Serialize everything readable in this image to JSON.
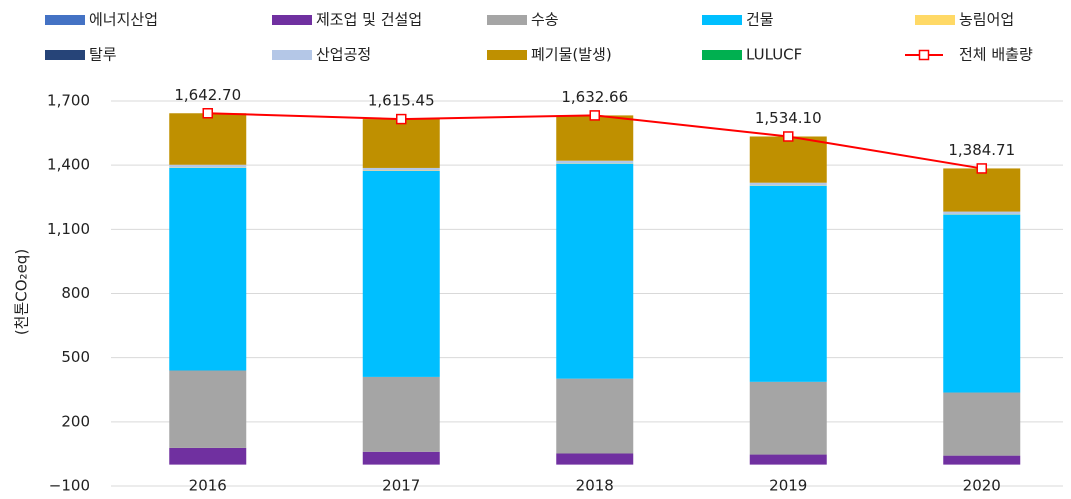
{
  "chart_data": {
    "type": "stacked_bar_line",
    "categories": [
      "2016",
      "2017",
      "2018",
      "2019",
      "2020"
    ],
    "y_label": "(천톤CO₂eq)",
    "ylim": [
      -100,
      1700
    ],
    "yticks": [
      {
        "value": -100,
        "label": "−100"
      },
      200,
      500,
      800,
      {
        "value": 1100,
        "label": "1,100"
      },
      {
        "value": 1400,
        "label": "1,400"
      },
      {
        "value": 1700,
        "label": "1,700"
      }
    ],
    "grid": true,
    "series": [
      {
        "name": "에너지산업",
        "color": "#4472c4",
        "values": [
          0,
          0,
          0,
          0,
          0
        ]
      },
      {
        "name": "제조업 및 건설업",
        "color": "#7030a0",
        "values": [
          78,
          60,
          52,
          47,
          42
        ]
      },
      {
        "name": "수송",
        "color": "#a5a5a5",
        "values": [
          362,
          350,
          350,
          340,
          295
        ]
      },
      {
        "name": "건물",
        "color": "#00bfff",
        "values": [
          948,
          963,
          1005,
          917,
          832
        ]
      },
      {
        "name": "농림어업",
        "color": "#ffd966",
        "values": [
          2,
          2,
          2,
          2,
          2
        ]
      },
      {
        "name": "탈루",
        "color": "#264478",
        "values": [
          0,
          0,
          0,
          0,
          0
        ]
      },
      {
        "name": "산업공정",
        "color": "#b4c7e7",
        "values": [
          12,
          12,
          12,
          12,
          12
        ]
      },
      {
        "name": "폐기물(발생)",
        "color": "#bf9000",
        "values": [
          240.7,
          228.45,
          211.66,
          216.1,
          201.71
        ]
      },
      {
        "name": "LULUCF",
        "color": "#00b050",
        "values": [
          0,
          0,
          0,
          0,
          0
        ]
      },
      {
        "name": "전체 배출량",
        "color": "#ff0000",
        "type": "line",
        "values": [
          1642.7,
          1615.45,
          1632.66,
          1534.1,
          1384.71
        ],
        "value_labels": [
          "1,642.70",
          "1,615.45",
          "1,632.66",
          "1,534.10",
          "1,384.71"
        ]
      }
    ]
  }
}
